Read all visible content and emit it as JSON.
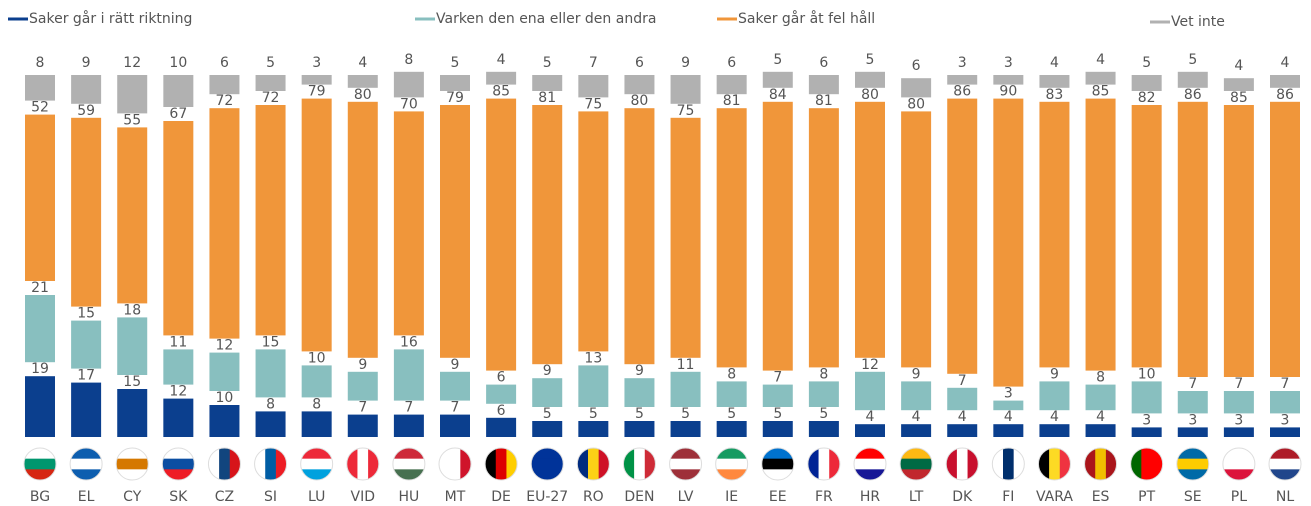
{
  "chart_data": {
    "type": "stacked_bar",
    "categories": [
      "BG",
      "EL",
      "CY",
      "SK",
      "CZ",
      "SI",
      "LU",
      "VID",
      "HU",
      "MT",
      "DE",
      "EU-27",
      "RO",
      "DEN",
      "LV",
      "IE",
      "EE",
      "FR",
      "HR",
      "LT",
      "DK",
      "FI",
      "VARA",
      "ES",
      "PT",
      "SE",
      "PL",
      "NL"
    ],
    "series": [
      {
        "name": "Saker går i rätt riktning",
        "color": "#0b3f8e",
        "values": [
          19,
          17,
          15,
          12,
          10,
          8,
          8,
          7,
          7,
          7,
          6,
          5,
          5,
          5,
          5,
          5,
          5,
          5,
          4,
          4,
          4,
          4,
          4,
          4,
          3,
          3,
          3,
          3
        ]
      },
      {
        "name": "Varken den ena eller den andra",
        "color": "#88bfbf",
        "values": [
          21,
          15,
          18,
          11,
          12,
          15,
          10,
          9,
          16,
          9,
          6,
          9,
          13,
          9,
          11,
          8,
          7,
          8,
          12,
          9,
          7,
          3,
          9,
          8,
          10,
          7,
          7,
          7
        ]
      },
      {
        "name": "Saker går åt fel håll",
        "color": "#f0963a",
        "values": [
          52,
          59,
          55,
          67,
          72,
          72,
          79,
          80,
          70,
          79,
          85,
          81,
          75,
          80,
          75,
          81,
          84,
          81,
          80,
          80,
          86,
          90,
          83,
          85,
          82,
          86,
          85,
          86
        ]
      },
      {
        "name": "Vet inte",
        "color": "#b1b1b1",
        "values": [
          8,
          9,
          12,
          10,
          6,
          5,
          3,
          4,
          8,
          5,
          4,
          5,
          7,
          6,
          9,
          6,
          5,
          6,
          5,
          6,
          3,
          3,
          4,
          4,
          5,
          5,
          4,
          4
        ]
      }
    ]
  }
}
